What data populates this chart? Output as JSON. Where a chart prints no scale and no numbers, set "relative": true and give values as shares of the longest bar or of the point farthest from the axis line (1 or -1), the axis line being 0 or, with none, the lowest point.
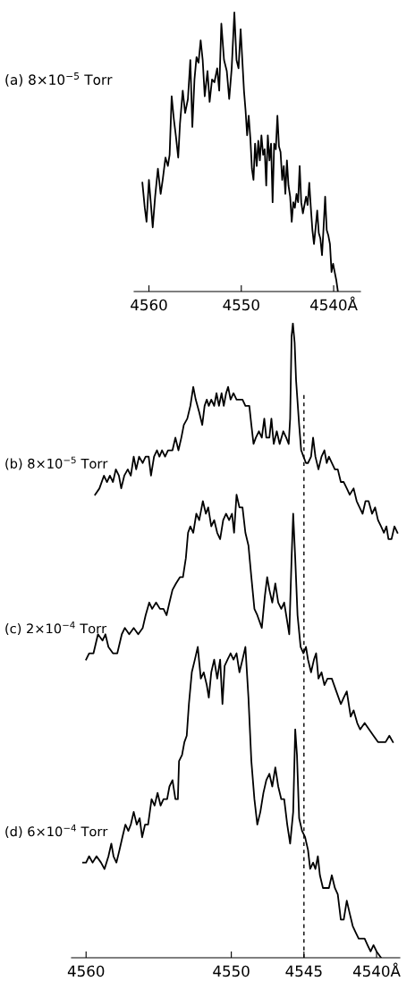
{
  "chart_data": [
    {
      "type": "line",
      "title": "(a) 8×10$^{−5}$ Torr",
      "relative": true,
      "xlim": [
        4561.6,
        4537.1
      ],
      "xticks": [
        4560,
        4550,
        {
          "value": 4540,
          "label": "4540Å"
        }
      ],
      "tick_labels": "x",
      "series": [
        {
          "color": "#000000",
          "x": [
            4560.71,
            4560.45,
            4560.26,
            4560.0,
            4559.78,
            4559.59,
            4559.33,
            4559.03,
            4558.73,
            4558.51,
            4558.21,
            4557.95,
            4557.76,
            4557.54,
            4557.31,
            4557.09,
            4556.83,
            4556.64,
            4556.34,
            4556.08,
            4555.78,
            4555.52,
            4555.3,
            4555.07,
            4554.85,
            4554.63,
            4554.4,
            4554.18,
            4553.96,
            4553.66,
            4553.43,
            4553.17,
            4552.91,
            4552.61,
            4552.39,
            4552.16,
            4551.87,
            4551.57,
            4551.31,
            4551.04,
            4550.75,
            4550.52,
            4550.3,
            4550.07,
            4549.89,
            4549.71,
            4549.54,
            4549.37,
            4549.2,
            4549.02,
            4548.85,
            4548.68,
            4548.51,
            4548.33,
            4548.16,
            4547.99,
            4547.82,
            4547.64,
            4547.47,
            4547.3,
            4547.13,
            4546.95,
            4546.78,
            4546.61,
            4546.44,
            4546.26,
            4546.09,
            4545.92,
            4545.75,
            4545.57,
            4545.4,
            4545.23,
            4545.06,
            4544.89,
            4544.71,
            4544.54,
            4544.37,
            4544.2,
            4544.02,
            4543.85,
            4543.68,
            4543.51,
            4543.33,
            4543.16,
            4542.99,
            4542.82,
            4542.64,
            4542.47,
            4542.3,
            4542.13,
            4541.95,
            4541.78,
            4541.61,
            4541.44,
            4541.26,
            4541.09,
            4540.92,
            4540.75,
            4540.57,
            4540.4,
            4540.23,
            4540.06,
            4539.89,
            4539.71,
            4539.54
          ],
          "values": [
            0.39,
            0.3,
            0.25,
            0.4,
            0.31,
            0.23,
            0.34,
            0.44,
            0.35,
            0.4,
            0.48,
            0.45,
            0.49,
            0.7,
            0.62,
            0.56,
            0.48,
            0.6,
            0.72,
            0.64,
            0.69,
            0.83,
            0.59,
            0.76,
            0.84,
            0.82,
            0.9,
            0.83,
            0.7,
            0.79,
            0.68,
            0.76,
            0.75,
            0.8,
            0.72,
            0.96,
            0.83,
            0.79,
            0.69,
            0.8,
            1.0,
            0.83,
            0.8,
            0.94,
            0.83,
            0.72,
            0.65,
            0.56,
            0.63,
            0.55,
            0.44,
            0.4,
            0.53,
            0.45,
            0.54,
            0.47,
            0.56,
            0.49,
            0.51,
            0.38,
            0.56,
            0.47,
            0.53,
            0.32,
            0.53,
            0.51,
            0.63,
            0.52,
            0.5,
            0.4,
            0.45,
            0.35,
            0.47,
            0.38,
            0.34,
            0.25,
            0.32,
            0.3,
            0.35,
            0.32,
            0.45,
            0.32,
            0.28,
            0.31,
            0.34,
            0.31,
            0.39,
            0.3,
            0.22,
            0.17,
            0.23,
            0.29,
            0.21,
            0.19,
            0.13,
            0.23,
            0.34,
            0.22,
            0.2,
            0.17,
            0.07,
            0.1,
            0.07,
            0.04,
            0.0
          ]
        }
      ]
    },
    {
      "type": "line",
      "relative": true,
      "xlim": [
        4561.0,
        4538.4
      ],
      "xticks": [
        4560,
        4550,
        4545,
        {
          "value": 4540,
          "label": "4540Å"
        }
      ],
      "tick_labels": "x",
      "ref_lines": [
        {
          "axis": "x",
          "value": 4545,
          "color": "#000000",
          "line_style": "dashed"
        }
      ],
      "series": [
        {
          "name": "(b) 8×10$^{−5}$ Torr",
          "color": "#000000",
          "x": [
            4559.38,
            4559.08,
            4558.77,
            4558.56,
            4558.36,
            4558.15,
            4557.95,
            4557.74,
            4557.58,
            4557.37,
            4557.13,
            4556.92,
            4556.72,
            4556.55,
            4556.35,
            4556.1,
            4555.9,
            4555.69,
            4555.53,
            4555.32,
            4555.12,
            4554.95,
            4554.77,
            4554.56,
            4554.36,
            4554.05,
            4553.85,
            4553.64,
            4553.44,
            4553.27,
            4553.03,
            4552.82,
            4552.62,
            4552.45,
            4552.21,
            4552.0,
            4551.84,
            4551.69,
            4551.55,
            4551.38,
            4551.18,
            4551.02,
            4550.85,
            4550.67,
            4550.52,
            4550.36,
            4550.22,
            4550.05,
            4549.85,
            4549.64,
            4549.44,
            4549.23,
            4549.03,
            4548.76,
            4548.62,
            4548.47,
            4548.31,
            4548.1,
            4547.9,
            4547.73,
            4547.59,
            4547.38,
            4547.24,
            4547.08,
            4546.87,
            4546.67,
            4546.42,
            4546.22,
            4546.05,
            4545.95,
            4545.85,
            4545.76,
            4545.64,
            4545.54,
            4545.33,
            4545.19,
            4545.03,
            4544.86,
            4544.72,
            4544.51,
            4544.37,
            4544.21,
            4544.0,
            4543.79,
            4543.59,
            4543.43,
            4543.28,
            4543.08,
            4542.87,
            4542.67,
            4542.46,
            4542.26,
            4542.05,
            4541.85,
            4541.58,
            4541.37,
            4541.17,
            4540.96,
            4540.76,
            4540.55,
            4540.31,
            4540.1,
            4539.9,
            4539.69,
            4539.49,
            4539.32,
            4539.18,
            4538.97,
            4538.77,
            4538.56
          ],
          "values": [
            0.73,
            0.74,
            0.76,
            0.75,
            0.76,
            0.75,
            0.77,
            0.76,
            0.74,
            0.76,
            0.77,
            0.76,
            0.79,
            0.77,
            0.79,
            0.78,
            0.79,
            0.79,
            0.76,
            0.79,
            0.8,
            0.79,
            0.8,
            0.79,
            0.8,
            0.8,
            0.82,
            0.8,
            0.82,
            0.84,
            0.85,
            0.87,
            0.9,
            0.88,
            0.86,
            0.84,
            0.87,
            0.88,
            0.87,
            0.88,
            0.87,
            0.89,
            0.87,
            0.89,
            0.87,
            0.89,
            0.9,
            0.88,
            0.89,
            0.88,
            0.88,
            0.88,
            0.87,
            0.87,
            0.84,
            0.81,
            0.82,
            0.83,
            0.82,
            0.85,
            0.82,
            0.82,
            0.85,
            0.81,
            0.83,
            0.81,
            0.83,
            0.82,
            0.81,
            0.85,
            0.98,
            1.0,
            0.97,
            0.91,
            0.84,
            0.8,
            0.79,
            0.78,
            0.78,
            0.79,
            0.82,
            0.79,
            0.77,
            0.79,
            0.8,
            0.78,
            0.79,
            0.78,
            0.77,
            0.77,
            0.75,
            0.75,
            0.74,
            0.73,
            0.74,
            0.72,
            0.71,
            0.7,
            0.72,
            0.72,
            0.7,
            0.71,
            0.69,
            0.68,
            0.67,
            0.68,
            0.66,
            0.66,
            0.68,
            0.67
          ]
        },
        {
          "name": "(c) 2×10$^{−4}$ Torr",
          "color": "#000000",
          "x": [
            4560.0,
            4559.79,
            4559.49,
            4559.18,
            4558.87,
            4558.67,
            4558.46,
            4558.15,
            4557.85,
            4557.54,
            4557.33,
            4557.03,
            4556.72,
            4556.41,
            4556.1,
            4555.9,
            4555.65,
            4555.45,
            4555.18,
            4554.91,
            4554.67,
            4554.46,
            4554.26,
            4554.05,
            4553.81,
            4553.54,
            4553.33,
            4553.13,
            4552.98,
            4552.82,
            4552.62,
            4552.41,
            4552.21,
            4551.96,
            4551.75,
            4551.59,
            4551.38,
            4551.18,
            4550.97,
            4550.77,
            4550.56,
            4550.36,
            4550.15,
            4549.95,
            4549.81,
            4549.64,
            4549.44,
            4549.23,
            4549.03,
            4548.82,
            4548.62,
            4548.41,
            4548.21,
            4547.9,
            4547.69,
            4547.53,
            4547.38,
            4547.18,
            4546.97,
            4546.77,
            4546.56,
            4546.36,
            4546.15,
            4546.01,
            4545.85,
            4545.74,
            4545.6,
            4545.44,
            4545.23,
            4545.03,
            4544.86,
            4544.72,
            4544.51,
            4544.31,
            4544.16,
            4544.0,
            4543.79,
            4543.59,
            4543.38,
            4543.08,
            4542.77,
            4542.46,
            4542.26,
            4542.05,
            4541.78,
            4541.58,
            4541.33,
            4541.13,
            4540.82,
            4540.51,
            4540.21,
            4539.9,
            4539.69,
            4539.38,
            4539.12,
            4538.87
          ],
          "values": [
            0.47,
            0.48,
            0.48,
            0.51,
            0.5,
            0.51,
            0.49,
            0.48,
            0.48,
            0.51,
            0.52,
            0.51,
            0.52,
            0.51,
            0.52,
            0.54,
            0.56,
            0.55,
            0.56,
            0.55,
            0.55,
            0.54,
            0.56,
            0.58,
            0.59,
            0.6,
            0.6,
            0.63,
            0.67,
            0.68,
            0.67,
            0.7,
            0.69,
            0.72,
            0.7,
            0.71,
            0.68,
            0.69,
            0.67,
            0.66,
            0.69,
            0.7,
            0.69,
            0.7,
            0.67,
            0.73,
            0.71,
            0.71,
            0.67,
            0.65,
            0.6,
            0.55,
            0.54,
            0.52,
            0.57,
            0.6,
            0.58,
            0.56,
            0.59,
            0.56,
            0.55,
            0.56,
            0.53,
            0.51,
            0.63,
            0.7,
            0.63,
            0.54,
            0.49,
            0.48,
            0.49,
            0.47,
            0.45,
            0.47,
            0.48,
            0.44,
            0.45,
            0.43,
            0.44,
            0.44,
            0.42,
            0.4,
            0.41,
            0.42,
            0.38,
            0.39,
            0.37,
            0.36,
            0.37,
            0.36,
            0.35,
            0.34,
            0.34,
            0.34,
            0.35,
            0.34
          ]
        },
        {
          "name": "(d) 6×10$^{−4}$ Torr",
          "color": "#000000",
          "x": [
            4560.21,
            4560.0,
            4559.79,
            4559.55,
            4559.28,
            4558.97,
            4558.73,
            4558.46,
            4558.26,
            4558.11,
            4557.91,
            4557.7,
            4557.5,
            4557.29,
            4557.09,
            4556.92,
            4556.72,
            4556.51,
            4556.31,
            4556.14,
            4555.94,
            4555.73,
            4555.49,
            4555.28,
            4555.08,
            4554.87,
            4554.67,
            4554.42,
            4554.26,
            4554.05,
            4553.85,
            4553.68,
            4553.6,
            4553.39,
            4553.23,
            4553.07,
            4552.92,
            4552.72,
            4552.51,
            4552.31,
            4552.1,
            4551.9,
            4551.69,
            4551.55,
            4551.38,
            4551.18,
            4550.97,
            4550.77,
            4550.61,
            4550.46,
            4550.26,
            4550.05,
            4549.85,
            4549.64,
            4549.44,
            4549.23,
            4549.03,
            4548.82,
            4548.62,
            4548.41,
            4548.21,
            4548.0,
            4547.79,
            4547.59,
            4547.38,
            4547.18,
            4546.97,
            4546.77,
            4546.56,
            4546.36,
            4546.15,
            4545.95,
            4545.74,
            4545.6,
            4545.48,
            4545.33,
            4545.13,
            4544.92,
            4544.72,
            4544.57,
            4544.37,
            4544.21,
            4544.04,
            4543.9,
            4543.69,
            4543.49,
            4543.28,
            4543.08,
            4542.87,
            4542.67,
            4542.46,
            4542.26,
            4542.05,
            4541.85,
            4541.64,
            4541.44,
            4541.23,
            4541.03,
            4540.82,
            4540.62,
            4540.41,
            4540.21,
            4540.0,
            4539.69
          ],
          "values": [
            0.15,
            0.15,
            0.16,
            0.15,
            0.16,
            0.15,
            0.14,
            0.16,
            0.18,
            0.16,
            0.15,
            0.17,
            0.19,
            0.21,
            0.2,
            0.21,
            0.23,
            0.21,
            0.22,
            0.19,
            0.21,
            0.21,
            0.25,
            0.24,
            0.26,
            0.24,
            0.25,
            0.25,
            0.27,
            0.28,
            0.25,
            0.25,
            0.31,
            0.32,
            0.34,
            0.35,
            0.4,
            0.45,
            0.47,
            0.49,
            0.44,
            0.45,
            0.43,
            0.41,
            0.45,
            0.47,
            0.44,
            0.47,
            0.4,
            0.46,
            0.47,
            0.48,
            0.47,
            0.48,
            0.45,
            0.47,
            0.49,
            0.41,
            0.31,
            0.25,
            0.21,
            0.23,
            0.26,
            0.28,
            0.29,
            0.27,
            0.3,
            0.27,
            0.25,
            0.25,
            0.21,
            0.18,
            0.23,
            0.36,
            0.32,
            0.22,
            0.2,
            0.19,
            0.17,
            0.14,
            0.15,
            0.14,
            0.16,
            0.13,
            0.11,
            0.11,
            0.11,
            0.13,
            0.11,
            0.1,
            0.06,
            0.06,
            0.09,
            0.07,
            0.05,
            0.04,
            0.03,
            0.03,
            0.03,
            0.02,
            0.01,
            0.02,
            0.01,
            0.0
          ]
        }
      ]
    }
  ]
}
